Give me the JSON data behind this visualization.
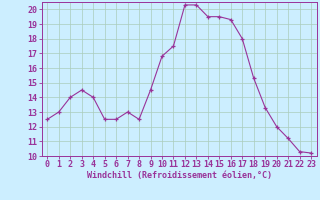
{
  "x": [
    0,
    1,
    2,
    3,
    4,
    5,
    6,
    7,
    8,
    9,
    10,
    11,
    12,
    13,
    14,
    15,
    16,
    17,
    18,
    19,
    20,
    21,
    22,
    23
  ],
  "y": [
    12.5,
    13.0,
    14.0,
    14.5,
    14.0,
    12.5,
    12.5,
    13.0,
    12.5,
    14.5,
    16.8,
    17.5,
    20.3,
    20.3,
    19.5,
    19.5,
    19.3,
    18.0,
    15.3,
    13.3,
    12.0,
    11.2,
    10.3,
    10.2
  ],
  "line_color": "#993399",
  "marker": "+",
  "bg_color": "#cceeff",
  "grid_color": "#aaccbb",
  "xlabel": "Windchill (Refroidissement éolien,°C)",
  "xlim": [
    -0.5,
    23.5
  ],
  "ylim": [
    10,
    20.5
  ],
  "yticks": [
    10,
    11,
    12,
    13,
    14,
    15,
    16,
    17,
    18,
    19,
    20
  ],
  "xticks": [
    0,
    1,
    2,
    3,
    4,
    5,
    6,
    7,
    8,
    9,
    10,
    11,
    12,
    13,
    14,
    15,
    16,
    17,
    18,
    19,
    20,
    21,
    22,
    23
  ],
  "tick_color": "#993399",
  "label_color": "#993399",
  "axis_color": "#993399",
  "tick_fontsize": 6,
  "xlabel_fontsize": 6
}
